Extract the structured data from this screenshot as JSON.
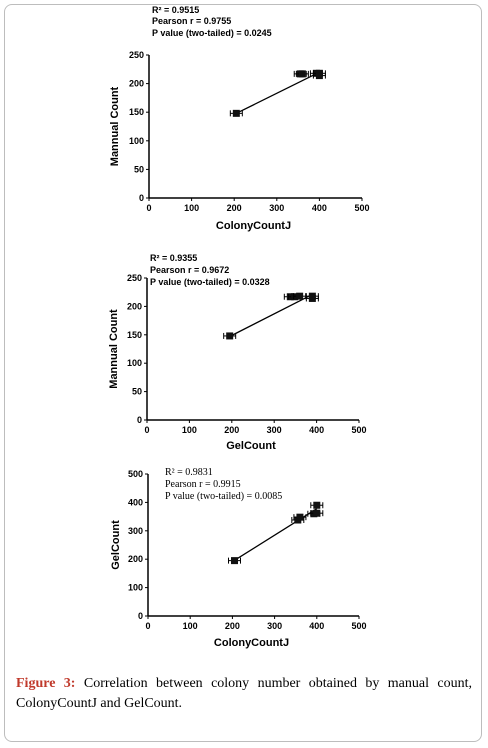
{
  "chart_data": [
    {
      "type": "scatter",
      "xlabel": "ColonyCountJ",
      "ylabel": "Mannual Count",
      "xlim": [
        0,
        500
      ],
      "ylim": [
        0,
        250
      ],
      "xticks": [
        "0",
        "100",
        "200",
        "300",
        "400",
        "500"
      ],
      "yticks": [
        "0",
        "50",
        "100",
        "150",
        "200",
        "250"
      ],
      "points": [
        {
          "x": 205,
          "y": 148
        },
        {
          "x": 355,
          "y": 217
        },
        {
          "x": 360,
          "y": 217
        },
        {
          "x": 393,
          "y": 218
        },
        {
          "x": 400,
          "y": 218
        },
        {
          "x": 400,
          "y": 214
        }
      ],
      "fit_line": {
        "x1": 205,
        "y1": 148,
        "x2": 400,
        "y2": 220
      },
      "stats": [
        "R² = 0.9515",
        "Pearson r = 0.9755",
        "P value (two-tailed) = 0.0245"
      ]
    },
    {
      "type": "scatter",
      "xlabel": "GelCount",
      "ylabel": "Mannual Count",
      "xlim": [
        0,
        500
      ],
      "ylim": [
        0,
        250
      ],
      "xticks": [
        "0",
        "100",
        "200",
        "300",
        "400",
        "500"
      ],
      "yticks": [
        "0",
        "50",
        "100",
        "150",
        "200",
        "250"
      ],
      "points": [
        {
          "x": 195,
          "y": 148
        },
        {
          "x": 338,
          "y": 217
        },
        {
          "x": 348,
          "y": 217
        },
        {
          "x": 360,
          "y": 218
        },
        {
          "x": 390,
          "y": 218
        },
        {
          "x": 390,
          "y": 214
        }
      ],
      "fit_line": {
        "x1": 195,
        "y1": 147,
        "x2": 390,
        "y2": 221
      },
      "stats": [
        "R² = 0.9355",
        "Pearson r = 0.9672",
        "P value (two-tailed) = 0.0328"
      ]
    },
    {
      "type": "scatter",
      "xlabel": "ColonyCountJ",
      "ylabel": "GelCount",
      "xlim": [
        0,
        500
      ],
      "ylim": [
        0,
        500
      ],
      "xticks": [
        "0",
        "100",
        "200",
        "300",
        "400",
        "500"
      ],
      "yticks": [
        "0",
        "100",
        "200",
        "300",
        "400",
        "500"
      ],
      "points": [
        {
          "x": 205,
          "y": 195
        },
        {
          "x": 355,
          "y": 338
        },
        {
          "x": 360,
          "y": 348
        },
        {
          "x": 393,
          "y": 360
        },
        {
          "x": 400,
          "y": 362
        },
        {
          "x": 400,
          "y": 390
        }
      ],
      "fit_line": {
        "x1": 205,
        "y1": 196,
        "x2": 400,
        "y2": 378
      },
      "stats": [
        "R² = 0.9831",
        "Pearson r = 0.9915",
        "P value (two-tailed) = 0.0085"
      ]
    }
  ],
  "caption": {
    "label": "Figure 3:",
    "text": " Correlation between colony number obtained by manual count, ColonyCountJ and GelCount."
  }
}
